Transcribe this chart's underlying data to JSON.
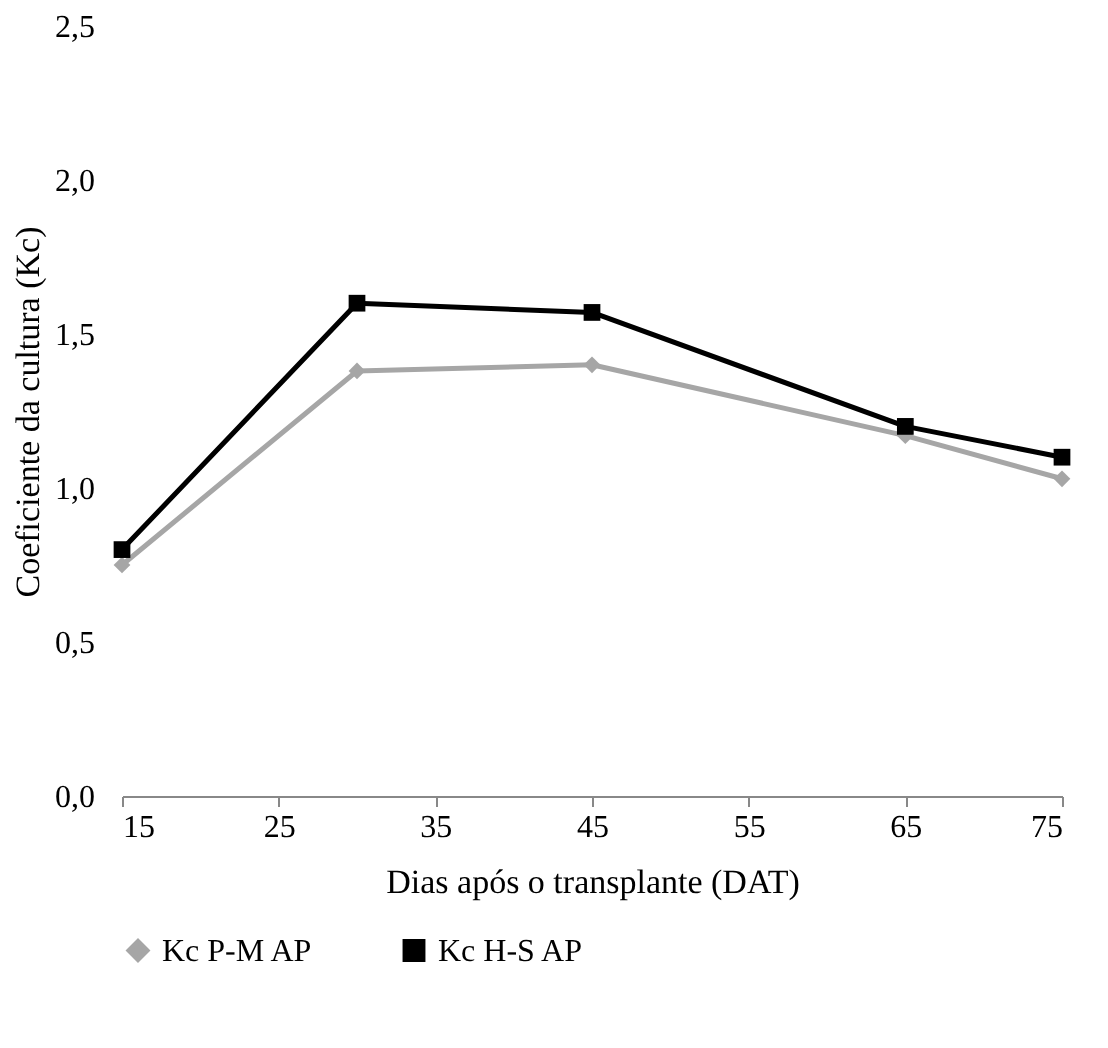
{
  "chart_data": {
    "type": "line",
    "xlabel": "Dias após o transplante (DAT)",
    "ylabel": "Coeficiente da cultura (Kc)",
    "x": [
      15,
      30,
      45,
      65,
      75
    ],
    "series": [
      {
        "name": "Kc P-M AP",
        "color": "#a6a6a6",
        "values": [
          0.75,
          1.38,
          1.4,
          1.17,
          1.03
        ],
        "marker": "diamond"
      },
      {
        "name": "Kc H-S AP",
        "color": "#000000",
        "values": [
          0.8,
          1.6,
          1.57,
          1.2,
          1.1
        ],
        "marker": "square"
      }
    ],
    "xlim": [
      15,
      75
    ],
    "xticks": [
      15,
      25,
      35,
      45,
      55,
      65,
      75
    ],
    "ylim": [
      0,
      2.5
    ],
    "yticks": [
      {
        "value": 0,
        "label": "0,0"
      },
      {
        "value": 0.5,
        "label": "0,5"
      },
      {
        "value": 1,
        "label": "1,0"
      },
      {
        "value": 1.5,
        "label": "1,5"
      },
      {
        "value": 2,
        "label": "2,0"
      },
      {
        "value": 2.5,
        "label": "2,5"
      }
    ],
    "grid": false,
    "legend": "bottom",
    "line_style": "solid"
  }
}
